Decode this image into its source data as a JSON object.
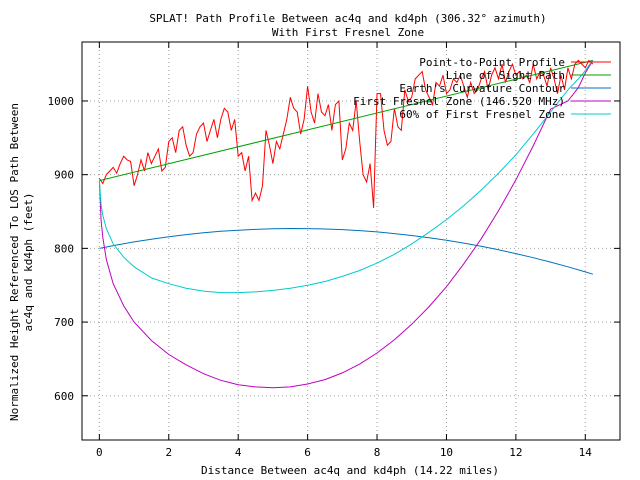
{
  "chart_data": {
    "type": "line",
    "title": "SPLAT! Path Profile Between ac4q and kd4ph (306.32° azimuth)",
    "subtitle": "With First Fresnel Zone",
    "xlabel": "Distance Between ac4q and kd4ph (14.22 miles)",
    "ylabel_line1": "Normalized Height Referenced To LOS Path Between",
    "ylabel_line2": "ac4q and kd4ph (feet)",
    "xlim": [
      -0.5,
      15
    ],
    "ylim": [
      540,
      1080
    ],
    "xticks": [
      0,
      2,
      4,
      6,
      8,
      10,
      12,
      14
    ],
    "yticks": [
      600,
      700,
      800,
      900,
      1000
    ],
    "grid": true,
    "legend_position": "top-right",
    "series": [
      {
        "name": "Point-to-Point Profile",
        "color": "#ff0000",
        "x": [
          0.0,
          0.1,
          0.2,
          0.3,
          0.4,
          0.5,
          0.6,
          0.7,
          0.8,
          0.9,
          1.0,
          1.1,
          1.2,
          1.3,
          1.4,
          1.5,
          1.6,
          1.7,
          1.8,
          1.9,
          2.0,
          2.1,
          2.2,
          2.3,
          2.4,
          2.5,
          2.6,
          2.7,
          2.8,
          2.9,
          3.0,
          3.1,
          3.2,
          3.3,
          3.4,
          3.5,
          3.6,
          3.7,
          3.8,
          3.9,
          4.0,
          4.1,
          4.2,
          4.3,
          4.4,
          4.5,
          4.6,
          4.7,
          4.8,
          4.9,
          5.0,
          5.1,
          5.2,
          5.3,
          5.4,
          5.5,
          5.6,
          5.7,
          5.8,
          5.9,
          6.0,
          6.1,
          6.2,
          6.3,
          6.4,
          6.5,
          6.6,
          6.7,
          6.8,
          6.9,
          7.0,
          7.1,
          7.2,
          7.3,
          7.4,
          7.5,
          7.6,
          7.7,
          7.8,
          7.9,
          8.0,
          8.1,
          8.2,
          8.3,
          8.4,
          8.5,
          8.6,
          8.7,
          8.8,
          8.9,
          9.0,
          9.1,
          9.2,
          9.3,
          9.4,
          9.5,
          9.6,
          9.7,
          9.8,
          9.9,
          10.0,
          10.1,
          10.2,
          10.3,
          10.4,
          10.5,
          10.6,
          10.7,
          10.8,
          10.9,
          11.0,
          11.1,
          11.2,
          11.3,
          11.4,
          11.5,
          11.6,
          11.7,
          11.8,
          11.9,
          12.0,
          12.1,
          12.2,
          12.3,
          12.4,
          12.5,
          12.6,
          12.7,
          12.8,
          12.9,
          13.0,
          13.1,
          13.2,
          13.3,
          13.4,
          13.5,
          13.6,
          13.7,
          13.8,
          13.9,
          14.0,
          14.1,
          14.22
        ],
        "y": [
          895,
          888,
          900,
          905,
          910,
          902,
          915,
          925,
          920,
          918,
          885,
          900,
          920,
          905,
          930,
          915,
          925,
          935,
          905,
          910,
          945,
          950,
          930,
          960,
          965,
          940,
          925,
          930,
          955,
          965,
          970,
          945,
          960,
          975,
          950,
          975,
          990,
          985,
          960,
          975,
          925,
          930,
          905,
          925,
          865,
          875,
          865,
          885,
          960,
          940,
          915,
          945,
          935,
          955,
          975,
          1005,
          990,
          985,
          955,
          975,
          1020,
          985,
          970,
          1010,
          985,
          980,
          995,
          960,
          995,
          1000,
          920,
          935,
          970,
          960,
          1000,
          945,
          900,
          890,
          915,
          855,
          1010,
          1010,
          960,
          940,
          945,
          990,
          965,
          960,
          1015,
          1000,
          1005,
          1030,
          1035,
          1040,
          1015,
          1005,
          995,
          1025,
          1020,
          1035,
          1010,
          1015,
          1030,
          1025,
          1035,
          1020,
          1005,
          1025,
          1010,
          1015,
          1030,
          1040,
          1015,
          1035,
          1045,
          1030,
          1050,
          1025,
          1040,
          1050,
          1035,
          1040,
          1030,
          1035,
          1025,
          1050,
          1030,
          1040,
          1035,
          1020,
          1045,
          1030,
          1010,
          1035,
          1015,
          1045,
          1030,
          1050,
          1055,
          1050,
          1045,
          1055,
          1050
        ]
      },
      {
        "name": "Line of Sight Path",
        "color": "#00a000",
        "x": [
          0,
          14.22
        ],
        "y": [
          892,
          1055
        ]
      },
      {
        "name": "Earth's Curvature Contour",
        "color": "#0072bd",
        "x": [
          0,
          0.5,
          1,
          1.5,
          2,
          2.5,
          3,
          3.5,
          4,
          4.5,
          5,
          5.5,
          6,
          6.5,
          7,
          7.5,
          8,
          8.5,
          9,
          9.5,
          10,
          10.5,
          11,
          11.5,
          12,
          12.5,
          13,
          13.5,
          14,
          14.22
        ],
        "y": [
          800,
          804.6,
          808.8,
          812.5,
          815.8,
          818.7,
          821.1,
          823.1,
          824.7,
          825.8,
          826.6,
          826.9,
          826.8,
          826.3,
          825.4,
          824.1,
          822.3,
          820.1,
          817.5,
          814.5,
          811.0,
          807.1,
          802.8,
          798.1,
          792.9,
          787.4,
          781.4,
          775.0,
          768.1,
          765
        ]
      },
      {
        "name": "First Fresnel Zone (146.520 MHz)",
        "color": "#c000c0",
        "x": [
          0,
          0.05,
          0.1,
          0.2,
          0.4,
          0.7,
          1,
          1.5,
          2,
          2.5,
          3,
          3.5,
          4,
          4.5,
          5,
          5.5,
          6,
          6.5,
          7,
          7.5,
          8,
          8.5,
          9,
          9.5,
          10,
          10.5,
          11,
          11.5,
          12,
          12.5,
          13,
          13.5,
          13.8,
          14,
          14.1,
          14.17,
          14.22
        ],
        "y": [
          892,
          838,
          815,
          785,
          752,
          722,
          700,
          675,
          656,
          642,
          630,
          621,
          615,
          612,
          611,
          612,
          616,
          622,
          631,
          643,
          658,
          676,
          697,
          721,
          748,
          779,
          813,
          851,
          893,
          939,
          989,
          1000,
          1018,
          1038,
          1046,
          1051,
          1055
        ]
      },
      {
        "name": "60% of First Fresnel Zone",
        "color": "#00cccc",
        "x": [
          0,
          0.05,
          0.1,
          0.2,
          0.4,
          0.7,
          1,
          1.5,
          2,
          2.5,
          3,
          3.5,
          4,
          4.5,
          5,
          5.5,
          6,
          6.5,
          7,
          7.5,
          8,
          8.5,
          9,
          9.5,
          10,
          10.5,
          11,
          11.5,
          12,
          12.5,
          13,
          13.5,
          13.8,
          14,
          14.1,
          14.17,
          14.22
        ],
        "y": [
          892,
          859,
          845,
          827,
          806,
          788,
          775,
          760,
          752,
          746,
          742,
          740,
          740,
          741,
          743,
          746,
          750,
          755,
          762,
          770,
          780,
          792,
          806,
          822,
          839,
          858,
          879,
          902,
          927,
          955,
          985,
          1015,
          1030,
          1041,
          1048,
          1052,
          1055
        ]
      }
    ]
  }
}
